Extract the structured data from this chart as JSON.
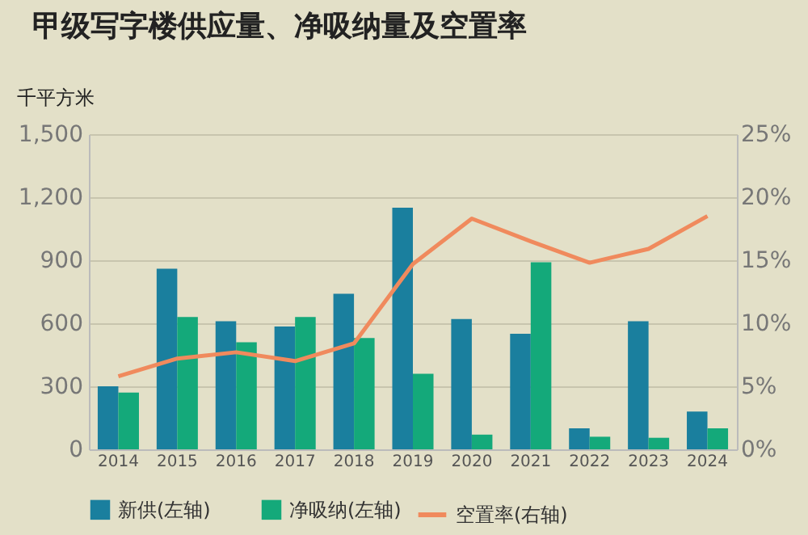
{
  "chart_data": {
    "type": "bar",
    "title": "甲级写字楼供应量、净吸纳量及空置率",
    "ylabel": "千平方米",
    "categories": [
      "2014",
      "2015",
      "2016",
      "2017",
      "2018",
      "2019",
      "2020",
      "2021",
      "2022",
      "2023",
      "2024"
    ],
    "series": [
      {
        "name": "新供(左轴)",
        "color": "#1a7f9e",
        "values": [
          300,
          860,
          610,
          585,
          740,
          1150,
          620,
          550,
          100,
          610,
          180
        ]
      },
      {
        "name": "净吸纳(左轴)",
        "color": "#14a97a",
        "values": [
          270,
          630,
          510,
          630,
          530,
          360,
          70,
          890,
          60,
          55,
          100
        ]
      },
      {
        "name": "空置率(右轴)",
        "color": "#f08a5d",
        "type": "line",
        "axis": "y2",
        "values": [
          5.8,
          7.2,
          7.7,
          7.0,
          8.4,
          14.7,
          18.3,
          16.5,
          14.8,
          15.9,
          18.5
        ]
      }
    ],
    "ylim": [
      0,
      1500
    ],
    "yticks": [
      0,
      300,
      600,
      900,
      {
        "value": 1200,
        "label": "1,200"
      },
      {
        "value": 1500,
        "label": "1,500"
      }
    ],
    "y2lim": [
      0,
      25
    ],
    "y2ticks": [
      {
        "value": 0,
        "label": "0%"
      },
      {
        "value": 5,
        "label": "5%"
      },
      {
        "value": 10,
        "label": "10%"
      },
      {
        "value": 15,
        "label": "15%"
      },
      {
        "value": 20,
        "label": "20%"
      },
      {
        "value": 25,
        "label": "25%"
      }
    ],
    "grid": "y",
    "legend": "bottom"
  }
}
